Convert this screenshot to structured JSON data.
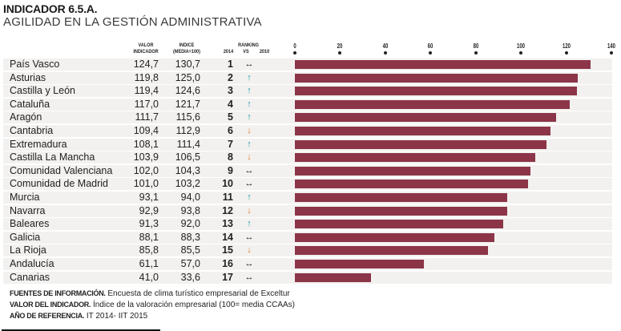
{
  "header": {
    "title": "INDICADOR 6.5.A.",
    "subtitle": "AGILIDAD EN LA GESTIÓN ADMINISTRATIVA"
  },
  "columns": {
    "valor_line1": "VALOR",
    "valor_line2": "INDICADOR",
    "indice_line1": "INDICE",
    "indice_line2": "(MEDIA=100)",
    "ranking": "RANKING",
    "rank_2014": "2014",
    "rank_vs": "VS",
    "rank_2010": "2010"
  },
  "trend_symbols": {
    "same": "↔",
    "up": "↑",
    "down": "↓"
  },
  "colors": {
    "bar": "#8c3548",
    "up": "#1a9ba6",
    "down": "#e07b2e",
    "row_bg": "#f2f1ef"
  },
  "chart_data": {
    "type": "bar",
    "orientation": "horizontal",
    "title": "INDICADOR 6.5.A. AGILIDAD EN LA GESTIÓN ADMINISTRATIVA",
    "xlabel": "",
    "ylabel": "",
    "xlim": [
      0,
      140
    ],
    "xticks": [
      0,
      20,
      40,
      60,
      80,
      100,
      120,
      140
    ],
    "bar_series": "indice",
    "rows": [
      {
        "region": "País Vasco",
        "valor": "124,7",
        "indice": 130.7,
        "indice_label": "130,7",
        "rank": "1",
        "trend": "same"
      },
      {
        "region": "Asturias",
        "valor": "119,8",
        "indice": 125.0,
        "indice_label": "125,0",
        "rank": "2",
        "trend": "up"
      },
      {
        "region": "Castilla y León",
        "valor": "119,4",
        "indice": 124.6,
        "indice_label": "124,6",
        "rank": "3",
        "trend": "up"
      },
      {
        "region": "Cataluña",
        "valor": "117,0",
        "indice": 121.7,
        "indice_label": "121,7",
        "rank": "4",
        "trend": "up"
      },
      {
        "region": "Aragón",
        "valor": "111,7",
        "indice": 115.6,
        "indice_label": "115,6",
        "rank": "5",
        "trend": "up"
      },
      {
        "region": "Cantabria",
        "valor": "109,4",
        "indice": 112.9,
        "indice_label": "112,9",
        "rank": "6",
        "trend": "down"
      },
      {
        "region": "Extremadura",
        "valor": "108,1",
        "indice": 111.4,
        "indice_label": "111,4",
        "rank": "7",
        "trend": "up"
      },
      {
        "region": "Castilla La Mancha",
        "valor": "103,9",
        "indice": 106.5,
        "indice_label": "106,5",
        "rank": "8",
        "trend": "down"
      },
      {
        "region": "Comunidad Valenciana",
        "valor": "102,0",
        "indice": 104.3,
        "indice_label": "104,3",
        "rank": "9",
        "trend": "same"
      },
      {
        "region": "Comunidad de Madrid",
        "valor": "101,0",
        "indice": 103.2,
        "indice_label": "103,2",
        "rank": "10",
        "trend": "same"
      },
      {
        "region": "Murcia",
        "valor": "93,1",
        "indice": 94.0,
        "indice_label": "94,0",
        "rank": "11",
        "trend": "up"
      },
      {
        "region": "Navarra",
        "valor": "92,9",
        "indice": 93.8,
        "indice_label": "93,8",
        "rank": "12",
        "trend": "down"
      },
      {
        "region": "Baleares",
        "valor": "91,3",
        "indice": 92.0,
        "indice_label": "92,0",
        "rank": "13",
        "trend": "up"
      },
      {
        "region": "Galicia",
        "valor": "88,1",
        "indice": 88.3,
        "indice_label": "88,3",
        "rank": "14",
        "trend": "same"
      },
      {
        "region": "La Rioja",
        "valor": "85,8",
        "indice": 85.5,
        "indice_label": "85,5",
        "rank": "15",
        "trend": "down"
      },
      {
        "region": "Andalucía",
        "valor": "61,1",
        "indice": 57.0,
        "indice_label": "57,0",
        "rank": "16",
        "trend": "same"
      },
      {
        "region": "Canarias",
        "valor": "41,0",
        "indice": 33.6,
        "indice_label": "33,6",
        "rank": "17",
        "trend": "same"
      }
    ]
  },
  "footer": {
    "fuentes_label": "FUENTES DE INFORMACIÓN.",
    "fuentes_text": " Encuesta de clima turístico empresarial de Exceltur",
    "valor_label": "VALOR DEL INDICADOR.",
    "valor_text": " Índice de la valoración empresarial (100= media CCAAs)",
    "anio_label": "AÑO DE REFERENCIA.",
    "anio_text": " IT 2014- IIT 2015"
  }
}
